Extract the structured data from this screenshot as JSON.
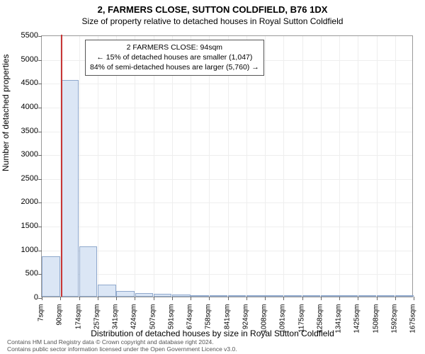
{
  "chart": {
    "type": "histogram",
    "title_main": "2, FARMERS CLOSE, SUTTON COLDFIELD, B76 1DX",
    "title_sub": "Size of property relative to detached houses in Royal Sutton Coldfield",
    "ylabel": "Number of detached properties",
    "xlabel": "Distribution of detached houses by size in Royal Sutton Coldfield",
    "ylim": [
      0,
      5500
    ],
    "yticks": [
      0,
      500,
      1000,
      1500,
      2000,
      2500,
      3000,
      3500,
      4000,
      4500,
      5000,
      5500
    ],
    "xticks": [
      "7sqm",
      "90sqm",
      "174sqm",
      "257sqm",
      "341sqm",
      "424sqm",
      "507sqm",
      "591sqm",
      "674sqm",
      "758sqm",
      "841sqm",
      "924sqm",
      "1008sqm",
      "1091sqm",
      "1175sqm",
      "1258sqm",
      "1341sqm",
      "1425sqm",
      "1508sqm",
      "1592sqm",
      "1675sqm"
    ],
    "bars": [
      850,
      4550,
      1050,
      250,
      120,
      70,
      60,
      40,
      30,
      20,
      15,
      10,
      8,
      6,
      5,
      4,
      3,
      2,
      2,
      1
    ],
    "bar_fill": "#dbe6f5",
    "bar_stroke": "#8fa8cc",
    "grid_color": "#eeeeee",
    "background": "#ffffff",
    "marker_x_value": 94,
    "marker_xrange": [
      7,
      1675
    ],
    "marker_color": "#c73636",
    "infobox": {
      "line1": "2 FARMERS CLOSE: 94sqm",
      "line2": "← 15% of detached houses are smaller (1,047)",
      "line3": "84% of semi-detached houses are larger (5,760) →"
    },
    "footer_line1": "Contains HM Land Registry data © Crown copyright and database right 2024.",
    "footer_line2": "Contains public sector information licensed under the Open Government Licence v3.0."
  }
}
